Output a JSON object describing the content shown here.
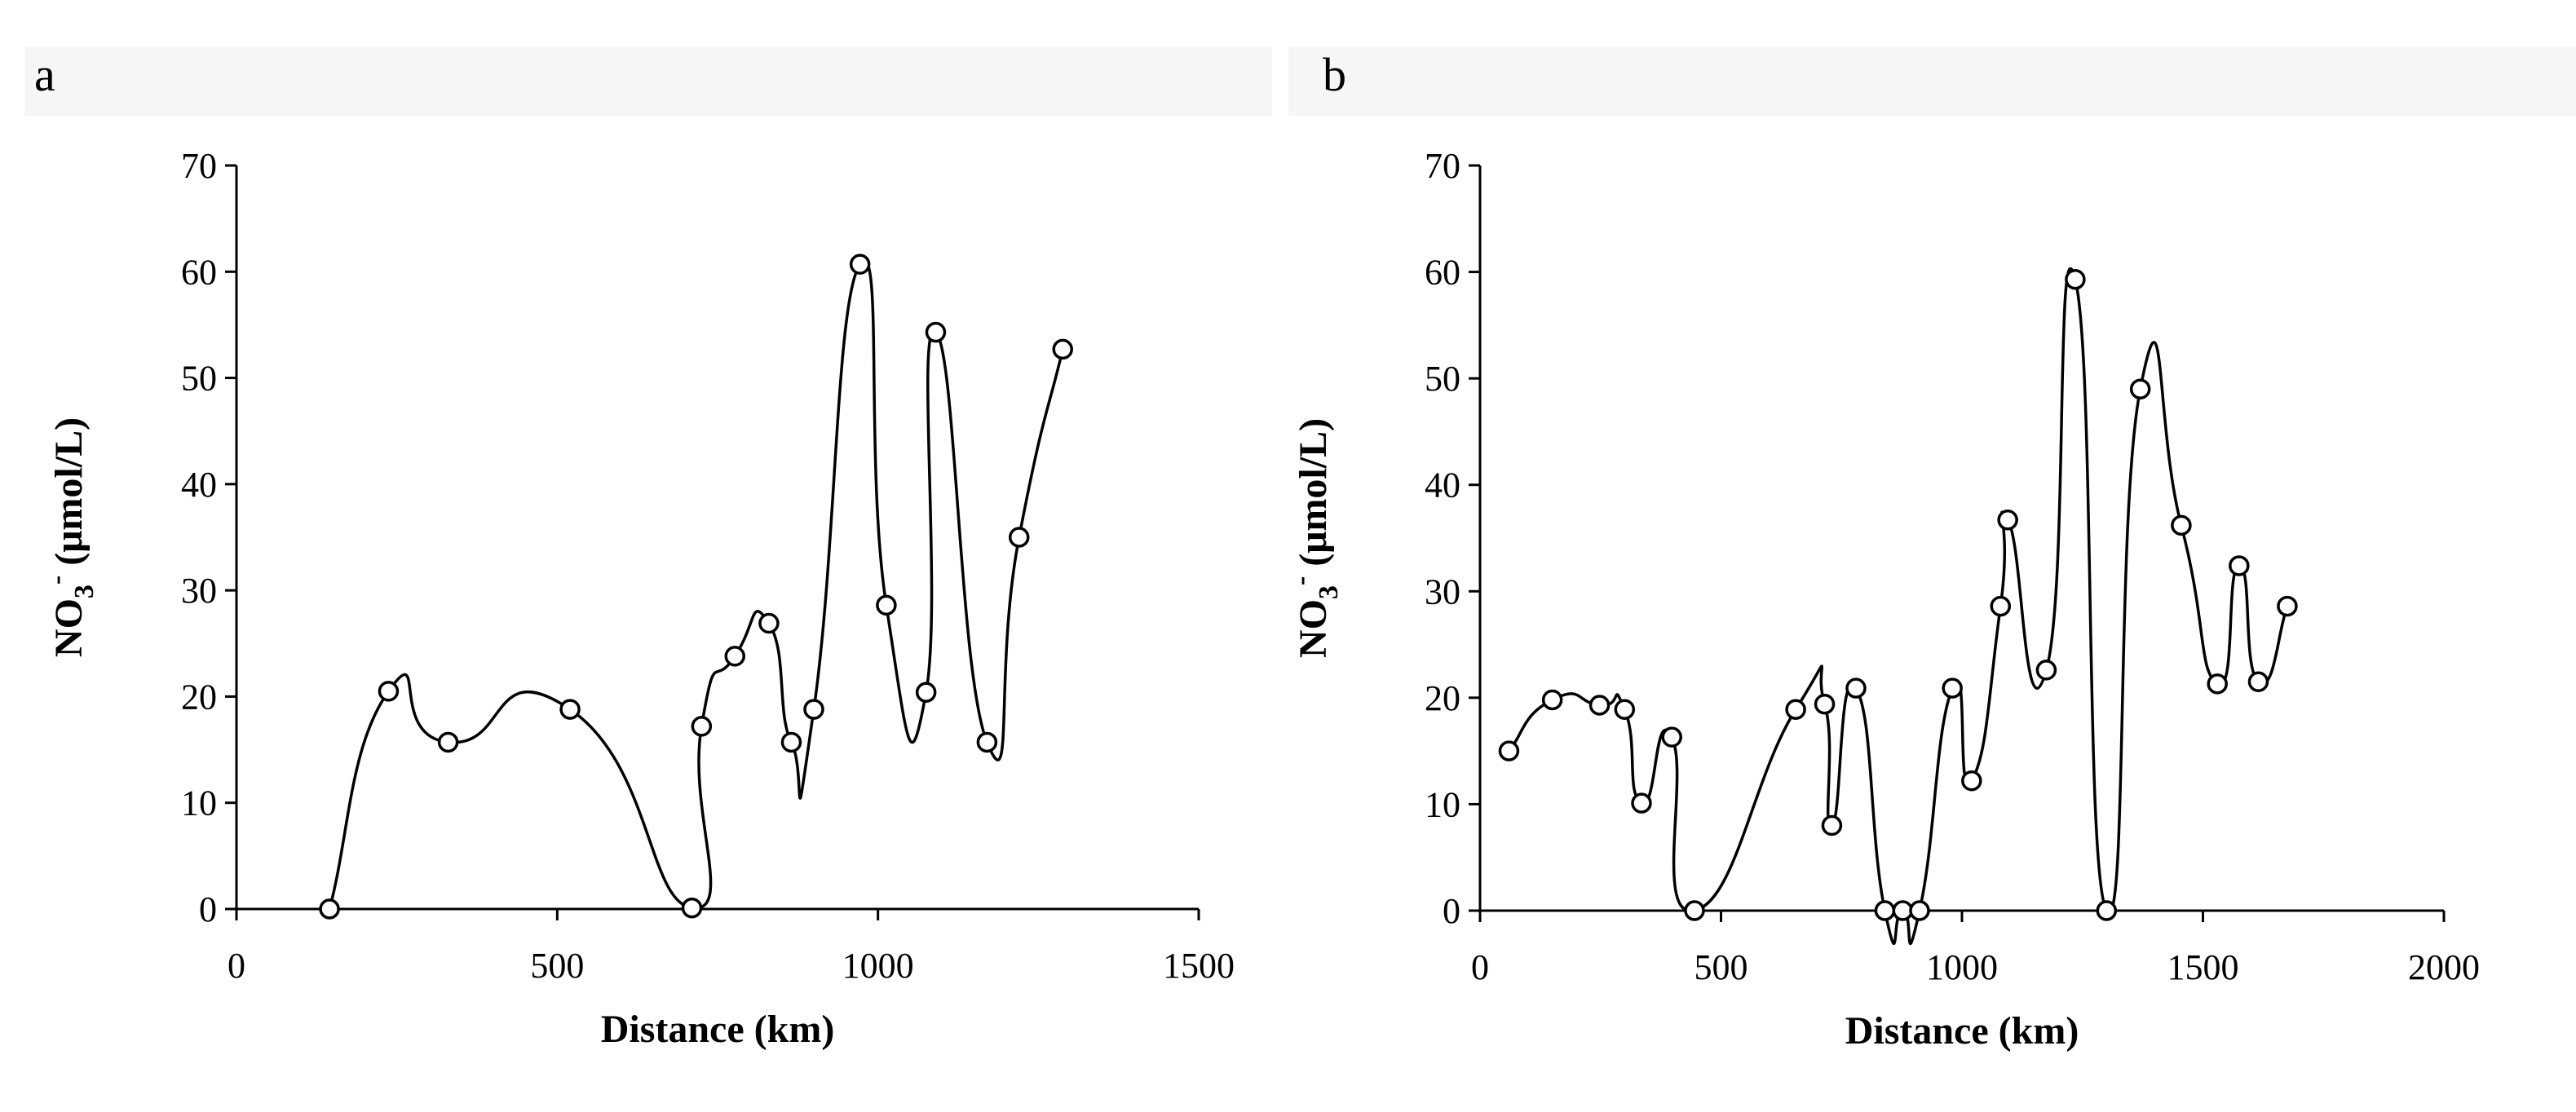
{
  "chart_data": [
    {
      "panel": "a",
      "type": "line",
      "title": "",
      "xlabel": "Distance (km)",
      "ylabel": "NO3- (μmol/L)",
      "ylabel_parts": {
        "main": "NO",
        "sub": "3",
        "sup": "-",
        "rest": " (μmol/L)"
      },
      "xlim": [
        0,
        1500
      ],
      "ylim": [
        0,
        70
      ],
      "xticks": [
        0,
        500,
        1000,
        1500
      ],
      "yticks": [
        0,
        10,
        20,
        30,
        40,
        50,
        60,
        70
      ],
      "grid": false,
      "smooth": true,
      "series": [
        {
          "name": "NO3-",
          "x": [
            145,
            237,
            330,
            520,
            710,
            725,
            777,
            830,
            865,
            900,
            972,
            1013,
            1075,
            1090,
            1170,
            1220,
            1288
          ],
          "y": [
            0,
            20.5,
            15.7,
            18.8,
            0.1,
            17.2,
            23.8,
            26.9,
            15.7,
            18.8,
            60.7,
            28.6,
            20.4,
            54.3,
            15.7,
            35.0,
            52.7
          ]
        }
      ]
    },
    {
      "panel": "b",
      "type": "line",
      "title": "",
      "xlabel": "Distance (km)",
      "ylabel": "NO3- (μmol/L)",
      "ylabel_parts": {
        "main": "NO",
        "sub": "3",
        "sup": "-",
        "rest": " (μmol/L)"
      },
      "xlim": [
        0,
        2000
      ],
      "ylim": [
        0,
        70
      ],
      "xticks": [
        0,
        500,
        1000,
        1500,
        2000
      ],
      "yticks": [
        0,
        10,
        20,
        30,
        40,
        50,
        60,
        70
      ],
      "grid": false,
      "smooth": true,
      "series": [
        {
          "name": "NO3-",
          "x": [
            60,
            150,
            248,
            300,
            335,
            398,
            445,
            655,
            715,
            730,
            780,
            840,
            877,
            912,
            980,
            1020,
            1080,
            1095,
            1175,
            1235,
            1300,
            1370,
            1455,
            1530,
            1575,
            1615,
            1675
          ],
          "y": [
            15.0,
            19.8,
            19.3,
            18.9,
            10.1,
            16.3,
            0.0,
            18.9,
            19.4,
            8.0,
            20.9,
            0.0,
            0.0,
            0.0,
            20.9,
            12.2,
            28.6,
            36.7,
            22.6,
            59.3,
            0.0,
            49.0,
            36.2,
            21.3,
            32.4,
            21.5,
            28.6
          ]
        }
      ]
    }
  ]
}
